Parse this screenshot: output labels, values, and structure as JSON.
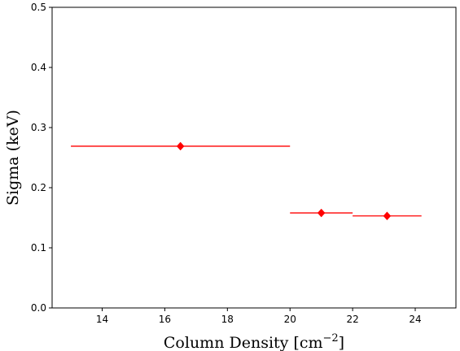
{
  "chart_data": {
    "type": "scatter",
    "title": "",
    "xlabel": "Column Density [cm",
    "xlabel_sup": "−2",
    "xlabel_close": "]",
    "ylabel": "Sigma (keV)",
    "xlim": [
      12.4,
      25.3
    ],
    "ylim": [
      0.0,
      0.5
    ],
    "xticks": [
      14,
      16,
      18,
      20,
      22,
      24
    ],
    "yticks": [
      0.0,
      0.1,
      0.2,
      0.3,
      0.4,
      0.5
    ],
    "ytick_labels": [
      "0.0",
      "0.1",
      "0.2",
      "0.3",
      "0.4",
      "0.5"
    ],
    "grid": false,
    "legend": "none",
    "marker": "diamond",
    "color": "#ff0000",
    "points": [
      {
        "x": 16.5,
        "y": 0.269,
        "xerr_low": 13.0,
        "xerr_high": 20.0
      },
      {
        "x": 21.0,
        "y": 0.158,
        "xerr_low": 20.0,
        "xerr_high": 22.0
      },
      {
        "x": 23.1,
        "y": 0.153,
        "xerr_low": 22.0,
        "xerr_high": 24.2
      }
    ]
  }
}
